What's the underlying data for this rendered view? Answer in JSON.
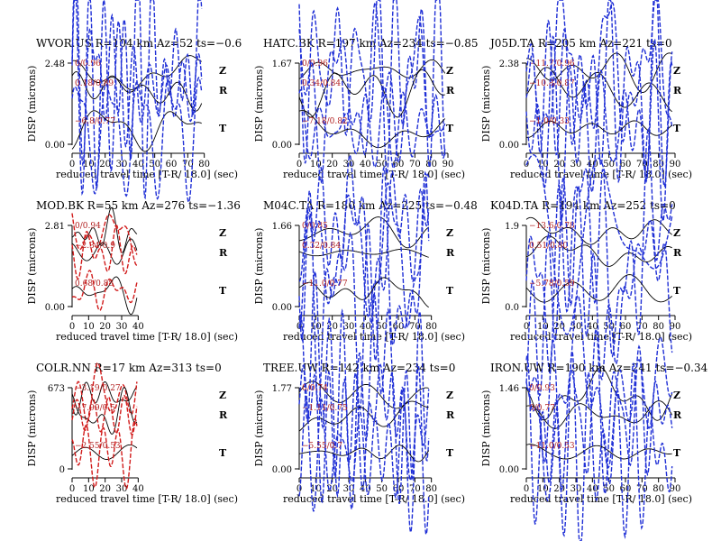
{
  "style": {
    "observed_color": "#000000",
    "synthetic_good_color": "#d11a1a",
    "synthetic_bad_color": "#1f2fd6"
  },
  "chart_data": [
    {
      "type": "line",
      "title": "WVOR.US R=104 km Az=52 ts=−0.6",
      "xlabel": "reduced travel time [T-R/ 18.0] (sec)",
      "ylabel": "DISP (microns)",
      "xlim": [
        0,
        80
      ],
      "xticks": [
        0,
        10,
        20,
        30,
        40,
        50,
        60,
        70,
        80
      ],
      "yticks": [
        "0.00",
        "2.48"
      ],
      "synthetic_color": "blue",
      "traces": [
        {
          "component": "Z",
          "annotation": "0/0.96"
        },
        {
          "component": "R",
          "annotation": "0.18/0.89"
        },
        {
          "component": "T",
          "annotation": "−6.8/0.77"
        }
      ]
    },
    {
      "type": "line",
      "title": "HATC.BK R=197 km Az=234 ts=−0.85",
      "xlabel": "reduced travel time [T-R/ 18.0] (sec)",
      "ylabel": "DISP (microns)",
      "xlim": [
        0,
        90
      ],
      "xticks": [
        0,
        10,
        20,
        30,
        40,
        50,
        60,
        70,
        80,
        90
      ],
      "yticks": [
        "0.00",
        "1.67"
      ],
      "synthetic_color": "blue",
      "traces": [
        {
          "component": "Z",
          "annotation": "0/0.96"
        },
        {
          "component": "R",
          "annotation": "0.34/0.84"
        },
        {
          "component": "T",
          "annotation": "−7.18/0.82"
        }
      ]
    },
    {
      "type": "line",
      "title": "J05D.TA R=205 km Az=221 ts=0",
      "xlabel": "reduced travel time [T-R/ 18.0] (sec)",
      "ylabel": "DISP (microns)",
      "xlim": [
        0,
        90
      ],
      "xticks": [
        0,
        10,
        20,
        30,
        40,
        50,
        60,
        70,
        80,
        90
      ],
      "yticks": [
        "0.00",
        "2.38"
      ],
      "synthetic_color": "blue",
      "traces": [
        {
          "component": "Z",
          "annotation": "−11.7/0.96"
        },
        {
          "component": "R",
          "annotation": "−10.8/0.87"
        },
        {
          "component": "T",
          "annotation": "−1.0/0.33"
        }
      ]
    },
    {
      "type": "line",
      "title": "MOD.BK R=55 km Az=276 ts=−1.36",
      "xlabel": "reduced travel time [T-R/ 18.0] (sec)",
      "ylabel": "DISP (microns)",
      "xlim": [
        0,
        40
      ],
      "xticks": [
        0,
        10,
        20,
        30,
        40
      ],
      "yticks": [
        "0.00",
        "2.81"
      ],
      "synthetic_color": "red",
      "traces": [
        {
          "component": "Z",
          "annotation": "0/0.94"
        },
        {
          "component": "R",
          "annotation": "−2.34/0.9"
        },
        {
          "component": "T",
          "annotation": "0.68/0.88"
        }
      ]
    },
    {
      "type": "line",
      "title": "M04C.TA R=180 km Az=225 ts=−0.48",
      "xlabel": "reduced travel time [T-R/ 18.0] (sec)",
      "ylabel": "DISP (microns)",
      "xlim": [
        0,
        80
      ],
      "xticks": [
        0,
        10,
        20,
        30,
        40,
        50,
        60,
        70,
        80
      ],
      "yticks": [
        "0.00",
        "1.66"
      ],
      "synthetic_color": "blue",
      "traces": [
        {
          "component": "Z",
          "annotation": "0/0.85"
        },
        {
          "component": "R",
          "annotation": "0.32/0.84"
        },
        {
          "component": "T",
          "annotation": "−11.0/0.77"
        }
      ]
    },
    {
      "type": "line",
      "title": "K04D.TA R=194 km Az=252 ts=0",
      "xlabel": "reduced travel time [T-R/ 18.0] (sec)",
      "ylabel": "DISP (microns)",
      "xlim": [
        0,
        90
      ],
      "xticks": [
        0,
        10,
        20,
        30,
        40,
        50,
        60,
        70,
        80,
        90
      ],
      "yticks": [
        "0.0",
        "1.9"
      ],
      "synthetic_color": "blue",
      "traces": [
        {
          "component": "Z",
          "annotation": "−13.6/0.78"
        },
        {
          "component": "R",
          "annotation": "0.51/0.80"
        },
        {
          "component": "T",
          "annotation": "−5.78/0.59"
        }
      ]
    },
    {
      "type": "line",
      "title": "COLR.NN R=17 km Az=313 ts=0",
      "xlabel": "reduced travel time [T-R/ 18.0] (sec)",
      "ylabel": "DISP (microns)",
      "xlim": [
        0,
        40
      ],
      "xticks": [
        0,
        10,
        20,
        30,
        40
      ],
      "yticks": [
        "0",
        "673"
      ],
      "synthetic_color": "red",
      "traces": [
        {
          "component": "Z",
          "annotation": "−3.19/0.27"
        },
        {
          "component": "R",
          "annotation": "−7.99/0.5"
        },
        {
          "component": "T",
          "annotation": "−2.55/0.53"
        }
      ]
    },
    {
      "type": "line",
      "title": "TREE.UW R=142 km Az=234 ts=0",
      "xlabel": "reduced travel time [T-R/ 18.0] (sec)",
      "ylabel": "DISP (microns)",
      "xlim": [
        0,
        80
      ],
      "xticks": [
        0,
        10,
        20,
        30,
        40,
        50,
        60,
        70,
        80
      ],
      "yticks": [
        "0.00",
        "1.77"
      ],
      "synthetic_color": "blue",
      "traces": [
        {
          "component": "Z",
          "annotation": "0/0.74"
        },
        {
          "component": "R",
          "annotation": "−1.11/0.75"
        },
        {
          "component": "T",
          "annotation": "−5.55/0.7"
        }
      ]
    },
    {
      "type": "line",
      "title": "IRON.UW R=190 km Az=241 ts=−0.34",
      "xlabel": "reduced travel time [T-R/ 18.0] (sec)",
      "ylabel": "DISP (microns)",
      "xlim": [
        0,
        90
      ],
      "xticks": [
        0,
        10,
        20,
        30,
        40,
        50,
        60,
        70,
        80,
        90
      ],
      "yticks": [
        "0.00",
        "1.46"
      ],
      "synthetic_color": "blue",
      "traces": [
        {
          "component": "Z",
          "annotation": "0/0.93"
        },
        {
          "component": "R",
          "annotation": "0/0.77"
        },
        {
          "component": "T",
          "annotation": "−11.0/0.53"
        }
      ]
    }
  ]
}
